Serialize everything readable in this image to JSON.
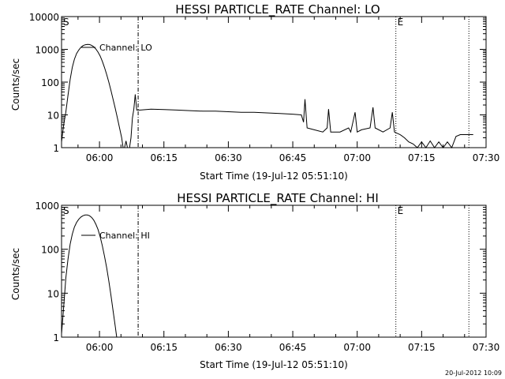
{
  "stamp": "20-Jul-2012 10:09",
  "chart_data": [
    {
      "type": "line",
      "title": "HESSI PARTICLE_RATE Channel: LO",
      "xlabel": "Start Time (19-Jul-12 05:51:10)",
      "ylabel": "Counts/sec",
      "y_scale": "log",
      "ylim": [
        1,
        10000
      ],
      "xlim": [
        "05:51:10",
        "07:30"
      ],
      "x_ticks": [
        "06:00",
        "06:15",
        "06:30",
        "06:45",
        "07:00",
        "07:15",
        "07:30"
      ],
      "y_ticks": [
        "1",
        "10",
        "100",
        "1000",
        "10000"
      ],
      "grid": false,
      "legend": "top-left",
      "markers": [
        {
          "label": "S",
          "x": "05:51:10",
          "style": "dotted"
        },
        {
          "label": "",
          "x": "06:09",
          "style": "dash-dot"
        },
        {
          "label": "E",
          "x": "07:09",
          "style": "dotted"
        },
        {
          "label": "",
          "x": "07:26",
          "style": "dotted"
        }
      ],
      "series": [
        {
          "name": "Channel: LO",
          "points": [
            [
              "05:51:10",
              1.5
            ],
            [
              "05:51:40",
              5
            ],
            [
              "05:52:10",
              12
            ],
            [
              "05:52:40",
              40
            ],
            [
              "05:53:10",
              120
            ],
            [
              "05:53:40",
              280
            ],
            [
              "05:54:10",
              500
            ],
            [
              "05:54:40",
              750
            ],
            [
              "05:55:10",
              950
            ],
            [
              "05:55:40",
              1150
            ],
            [
              "05:56:10",
              1300
            ],
            [
              "05:56:40",
              1380
            ],
            [
              "05:57:10",
              1420
            ],
            [
              "05:57:40",
              1400
            ],
            [
              "05:58:10",
              1330
            ],
            [
              "05:58:40",
              1200
            ],
            [
              "05:59:10",
              1020
            ],
            [
              "05:59:40",
              820
            ],
            [
              "06:00:10",
              620
            ],
            [
              "06:00:40",
              430
            ],
            [
              "06:01:10",
              280
            ],
            [
              "06:01:40",
              170
            ],
            [
              "06:02:10",
              100
            ],
            [
              "06:02:40",
              56
            ],
            [
              "06:03:10",
              30
            ],
            [
              "06:03:40",
              16
            ],
            [
              "06:04:10",
              8
            ],
            [
              "06:04:40",
              4
            ],
            [
              "06:05:10",
              2
            ],
            [
              "06:05:30",
              1
            ],
            [
              "06:05:50",
              1
            ],
            [
              "06:06:10",
              1.6
            ],
            [
              "06:06:30",
              1
            ],
            [
              "06:07:00",
              1
            ],
            [
              "06:07:20",
              2
            ],
            [
              "06:07:40",
              8
            ],
            [
              "06:08:00",
              15
            ],
            [
              "06:08:20",
              42
            ],
            [
              "06:08:40",
              14
            ],
            [
              "06:09:30",
              14
            ],
            [
              "06:12:00",
              15
            ],
            [
              "06:15:00",
              14.5
            ],
            [
              "06:18:00",
              14
            ],
            [
              "06:21:00",
              13.5
            ],
            [
              "06:24:00",
              13
            ],
            [
              "06:27:00",
              13
            ],
            [
              "06:30:00",
              12.5
            ],
            [
              "06:33:00",
              12
            ],
            [
              "06:36:00",
              12
            ],
            [
              "06:39:00",
              11.5
            ],
            [
              "06:42:00",
              11
            ],
            [
              "06:45:00",
              10.5
            ],
            [
              "06:47:00",
              10
            ],
            [
              "06:47:30",
              6
            ],
            [
              "06:47:50",
              30
            ],
            [
              "06:48:20",
              4
            ],
            [
              "06:50:00",
              3.5
            ],
            [
              "06:52:00",
              3
            ],
            [
              "06:53:00",
              4
            ],
            [
              "06:53:20",
              15
            ],
            [
              "06:53:50",
              3
            ],
            [
              "06:56:00",
              3
            ],
            [
              "06:58:00",
              4
            ],
            [
              "06:58:30",
              3
            ],
            [
              "06:59:30",
              12
            ],
            [
              "07:00:00",
              3
            ],
            [
              "07:01:00",
              3.5
            ],
            [
              "07:03:00",
              4
            ],
            [
              "07:03:40",
              17
            ],
            [
              "07:04:10",
              4
            ],
            [
              "07:06:00",
              3
            ],
            [
              "07:07:40",
              4
            ],
            [
              "07:08:10",
              12
            ],
            [
              "07:08:40",
              3
            ],
            [
              "07:10:00",
              2.5
            ],
            [
              "07:11:00",
              2
            ],
            [
              "07:12:00",
              1.5
            ],
            [
              "07:13:00",
              1.3
            ],
            [
              "07:14:00",
              1
            ],
            [
              "07:15:00",
              1.5
            ],
            [
              "07:16:00",
              1
            ],
            [
              "07:17:00",
              1.6
            ],
            [
              "07:18:00",
              1
            ],
            [
              "07:19:00",
              1.5
            ],
            [
              "07:20:00",
              1
            ],
            [
              "07:21:00",
              1.5
            ],
            [
              "07:22:00",
              1
            ],
            [
              "07:23:00",
              2.2
            ],
            [
              "07:24:00",
              2.5
            ],
            [
              "07:27:00",
              2.5
            ]
          ]
        }
      ]
    },
    {
      "type": "line",
      "title": "HESSI PARTICLE_RATE Channel: HI",
      "xlabel": "Start Time (19-Jul-12 05:51:10)",
      "ylabel": "Counts/sec",
      "y_scale": "log",
      "ylim": [
        1,
        1000
      ],
      "xlim": [
        "05:51:10",
        "07:30"
      ],
      "x_ticks": [
        "06:00",
        "06:15",
        "06:30",
        "06:45",
        "07:00",
        "07:15",
        "07:30"
      ],
      "y_ticks": [
        "1",
        "10",
        "100",
        "1000"
      ],
      "grid": false,
      "legend": "top-left",
      "markers": [
        {
          "label": "S",
          "x": "05:51:10",
          "style": "dotted"
        },
        {
          "label": "",
          "x": "06:09",
          "style": "dash-dot"
        },
        {
          "label": "E",
          "x": "07:09",
          "style": "dotted"
        },
        {
          "label": "",
          "x": "07:26",
          "style": "dotted"
        }
      ],
      "series": [
        {
          "name": "Channel: HI",
          "points": [
            [
              "05:51:10",
              1.2
            ],
            [
              "05:51:30",
              3
            ],
            [
              "05:51:50",
              8
            ],
            [
              "05:52:10",
              22
            ],
            [
              "05:52:40",
              60
            ],
            [
              "05:53:10",
              130
            ],
            [
              "05:53:40",
              220
            ],
            [
              "05:54:10",
              320
            ],
            [
              "05:54:40",
              410
            ],
            [
              "05:55:10",
              480
            ],
            [
              "05:55:40",
              540
            ],
            [
              "05:56:10",
              580
            ],
            [
              "05:56:40",
              600
            ],
            [
              "05:57:10",
              600
            ],
            [
              "05:57:40",
              580
            ],
            [
              "05:58:10",
              530
            ],
            [
              "05:58:40",
              460
            ],
            [
              "05:59:10",
              370
            ],
            [
              "05:59:40",
              280
            ],
            [
              "06:00:10",
              190
            ],
            [
              "06:00:40",
              120
            ],
            [
              "06:01:10",
              70
            ],
            [
              "06:01:40",
              38
            ],
            [
              "06:02:10",
              19
            ],
            [
              "06:02:40",
              9
            ],
            [
              "06:03:10",
              4
            ],
            [
              "06:03:40",
              1.8
            ],
            [
              "06:04:00",
              1
            ]
          ]
        }
      ]
    }
  ]
}
